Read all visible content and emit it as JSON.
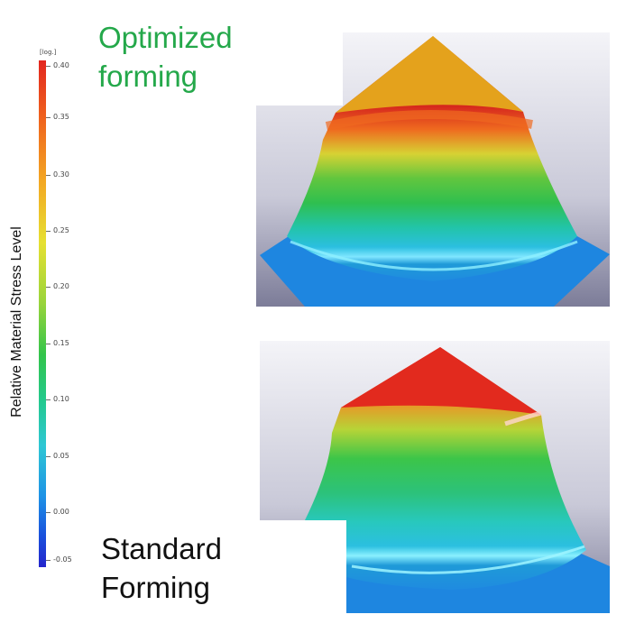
{
  "colorbar": {
    "unit": "[log.]",
    "ticks": [
      "0.40",
      "0.35",
      "0.30",
      "0.25",
      "0.20",
      "0.15",
      "0.10",
      "0.05",
      "0.00",
      "-0.05"
    ],
    "axis_label": "Relative Material Stress Level"
  },
  "labels": {
    "optimized_line1": "Optimized",
    "optimized_line2": "forming",
    "standard_line1": "Standard",
    "standard_line2": "Forming"
  },
  "colors": {
    "optimized_label": "#24a84a",
    "standard_label": "#111111"
  }
}
